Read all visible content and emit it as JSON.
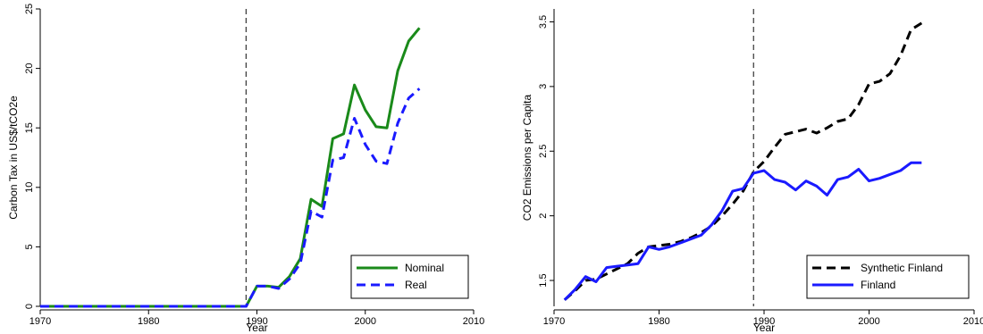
{
  "chart_data": [
    {
      "type": "line",
      "xlabel": "Year",
      "ylabel": "Carbon Tax in US$/tCO2e",
      "xlim": [
        1970,
        2010
      ],
      "ylim": [
        0,
        25
      ],
      "xticks": [
        1970,
        1980,
        1990,
        2000,
        2010
      ],
      "yticks": [
        0,
        5,
        10,
        15,
        20,
        25
      ],
      "ytick_rotation": "vertical",
      "grid": false,
      "legend_position": "bottom-right",
      "vline": {
        "x": 1989,
        "style": "dashed",
        "color": "#333333"
      },
      "x": [
        1970,
        1971,
        1972,
        1973,
        1974,
        1975,
        1976,
        1977,
        1978,
        1979,
        1980,
        1981,
        1982,
        1983,
        1984,
        1985,
        1986,
        1987,
        1988,
        1989,
        1990,
        1991,
        1992,
        1993,
        1994,
        1995,
        1996,
        1997,
        1998,
        1999,
        2000,
        2001,
        2002,
        2003,
        2004,
        2005
      ],
      "series": [
        {
          "name": "Nominal",
          "color": "#1a8a1a",
          "dash": "solid",
          "values": [
            0,
            0,
            0,
            0,
            0,
            0,
            0,
            0,
            0,
            0,
            0,
            0,
            0,
            0,
            0,
            0,
            0,
            0,
            0,
            0,
            1.7,
            1.7,
            1.6,
            2.5,
            4.0,
            9.0,
            8.4,
            14.1,
            14.5,
            18.6,
            16.5,
            15.1,
            15.0,
            19.8,
            22.3,
            23.4
          ]
        },
        {
          "name": "Real",
          "color": "#1a1aff",
          "dash": "dashed",
          "values": [
            0,
            0,
            0,
            0,
            0,
            0,
            0,
            0,
            0,
            0,
            0,
            0,
            0,
            0,
            0,
            0,
            0,
            0,
            0,
            0,
            1.7,
            1.7,
            1.5,
            2.3,
            3.6,
            8.0,
            7.5,
            12.3,
            12.5,
            15.8,
            13.6,
            12.2,
            12.0,
            15.4,
            17.5,
            18.3
          ]
        }
      ]
    },
    {
      "type": "line",
      "xlabel": "Year",
      "ylabel": "CO2 Emissions per Capita",
      "xlim": [
        1970,
        2010
      ],
      "ylim": [
        1.3,
        3.6
      ],
      "xticks": [
        1970,
        1980,
        1990,
        2000,
        2010
      ],
      "yticks": [
        1.5,
        2,
        2.5,
        3,
        3.5
      ],
      "ytick_rotation": "vertical",
      "grid": false,
      "legend_position": "bottom-right",
      "vline": {
        "x": 1989,
        "style": "dashed",
        "color": "#333333"
      },
      "x": [
        1971,
        1972,
        1973,
        1974,
        1975,
        1976,
        1977,
        1978,
        1979,
        1980,
        1981,
        1982,
        1983,
        1984,
        1985,
        1986,
        1987,
        1988,
        1989,
        1990,
        1991,
        1992,
        1993,
        1994,
        1995,
        1996,
        1997,
        1998,
        1999,
        2000,
        2001,
        2002,
        2003,
        2004,
        2005
      ],
      "series": [
        {
          "name": "Synthetic Finland",
          "color": "#000000",
          "dash": "dashed",
          "values": [
            1.35,
            1.42,
            1.5,
            1.51,
            1.55,
            1.59,
            1.63,
            1.71,
            1.76,
            1.77,
            1.78,
            1.8,
            1.83,
            1.87,
            1.92,
            2.0,
            2.09,
            2.19,
            2.34,
            2.42,
            2.53,
            2.63,
            2.65,
            2.67,
            2.64,
            2.68,
            2.73,
            2.75,
            2.86,
            3.02,
            3.04,
            3.1,
            3.24,
            3.44,
            3.49
          ]
        },
        {
          "name": "Finland",
          "color": "#1a1aff",
          "dash": "solid",
          "values": [
            1.35,
            1.43,
            1.53,
            1.49,
            1.6,
            1.61,
            1.62,
            1.63,
            1.76,
            1.74,
            1.76,
            1.79,
            1.82,
            1.85,
            1.93,
            2.04,
            2.19,
            2.21,
            2.33,
            2.35,
            2.28,
            2.26,
            2.2,
            2.27,
            2.23,
            2.16,
            2.28,
            2.3,
            2.36,
            2.27,
            2.29,
            2.32,
            2.35,
            2.41,
            2.41
          ]
        }
      ]
    }
  ]
}
